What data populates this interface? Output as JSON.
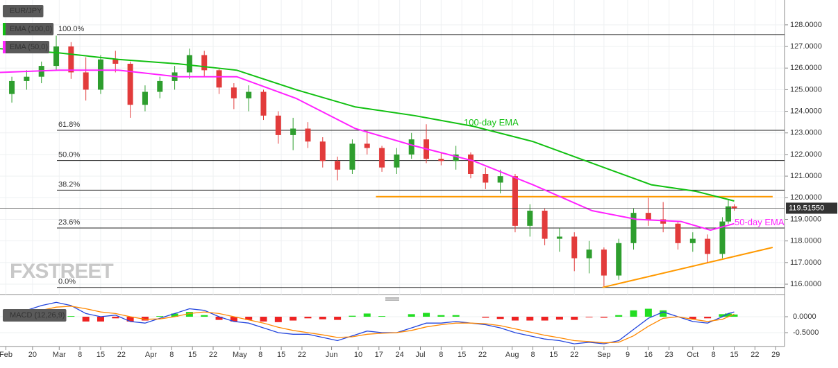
{
  "chart_data": [
    {
      "type": "candlestick",
      "title": "EUR/JPY",
      "watermark": "FXSTREET",
      "up_color": "#2e9e2e",
      "down_color": "#e23b3b",
      "xlim": [
        40,
        305
      ],
      "xticks": [
        {
          "value": 42,
          "label": "Feb"
        },
        {
          "value": 51,
          "label": "20"
        },
        {
          "value": 60,
          "label": "Mar"
        },
        {
          "value": 67,
          "label": "8"
        },
        {
          "value": 74,
          "label": "15"
        },
        {
          "value": 81,
          "label": "22"
        },
        {
          "value": 91,
          "label": "Apr"
        },
        {
          "value": 98,
          "label": "8"
        },
        {
          "value": 105,
          "label": "15"
        },
        {
          "value": 112,
          "label": "22"
        },
        {
          "value": 121,
          "label": "May"
        },
        {
          "value": 128,
          "label": "8"
        },
        {
          "value": 135,
          "label": "15"
        },
        {
          "value": 142,
          "label": "22"
        },
        {
          "value": 152,
          "label": "Jun"
        },
        {
          "value": 161,
          "label": "10"
        },
        {
          "value": 168,
          "label": "17"
        },
        {
          "value": 175,
          "label": "24"
        },
        {
          "value": 182,
          "label": "Jul"
        },
        {
          "value": 189,
          "label": "8"
        },
        {
          "value": 196,
          "label": "15"
        },
        {
          "value": 203,
          "label": "22"
        },
        {
          "value": 213,
          "label": "Aug"
        },
        {
          "value": 220,
          "label": "8"
        },
        {
          "value": 227,
          "label": "15"
        },
        {
          "value": 234,
          "label": "22"
        },
        {
          "value": 244,
          "label": "Sep"
        },
        {
          "value": 252,
          "label": "9"
        },
        {
          "value": 259,
          "label": "16"
        },
        {
          "value": 266,
          "label": "23"
        },
        {
          "value": 274,
          "label": "Oct"
        },
        {
          "value": 281,
          "label": "8"
        },
        {
          "value": 288,
          "label": "15"
        },
        {
          "value": 295,
          "label": "22"
        },
        {
          "value": 302,
          "label": "29"
        }
      ],
      "ylim": [
        115.52,
        129.15
      ],
      "yticks": [
        {
          "value": 116,
          "label": "116.0000"
        },
        {
          "value": 117,
          "label": "117.0000"
        },
        {
          "value": 118,
          "label": "118.0000"
        },
        {
          "value": 119,
          "label": "119.0000"
        },
        {
          "value": 120,
          "label": "120.0000"
        },
        {
          "value": 121,
          "label": "121.0000"
        },
        {
          "value": 122,
          "label": "122.0000"
        },
        {
          "value": 123,
          "label": "123.0000"
        },
        {
          "value": 124,
          "label": "124.0000"
        },
        {
          "value": 125,
          "label": "125.0000"
        },
        {
          "value": 126,
          "label": "126.0000"
        },
        {
          "value": 127,
          "label": "127.0000"
        },
        {
          "value": 128,
          "label": "128.0000"
        }
      ],
      "grid": true,
      "last_price": {
        "value": 119.5155,
        "label": "119.51550"
      },
      "candles": {
        "x": [
          44,
          49,
          54,
          59,
          64,
          69,
          74,
          79,
          84,
          89,
          94,
          99,
          104,
          109,
          114,
          119,
          124,
          129,
          134,
          139,
          144,
          149,
          154,
          159,
          164,
          169,
          174,
          179,
          184,
          189,
          194,
          199,
          204,
          209,
          214,
          219,
          224,
          229,
          234,
          239,
          244,
          249,
          254,
          259,
          264,
          269,
          274,
          279,
          284,
          286,
          288
        ],
        "open": [
          124.8,
          125.4,
          125.6,
          126.1,
          127.0,
          125.8,
          125.0,
          126.4,
          126.2,
          124.3,
          124.9,
          125.4,
          125.8,
          126.6,
          125.9,
          125.1,
          124.6,
          124.9,
          123.8,
          122.9,
          123.2,
          122.6,
          121.7,
          121.3,
          122.5,
          122.3,
          121.4,
          122.0,
          122.7,
          121.8,
          121.7,
          122.0,
          121.1,
          120.7,
          121.0,
          118.7,
          119.4,
          118.1,
          118.2,
          117.2,
          117.6,
          116.4,
          117.9,
          119.3,
          119.0,
          118.8,
          117.9,
          118.1,
          117.4,
          118.9,
          119.6
        ],
        "high": [
          125.6,
          125.9,
          126.3,
          127.5,
          127.2,
          126.5,
          126.6,
          126.8,
          126.3,
          125.2,
          125.6,
          126.1,
          126.9,
          126.8,
          126.0,
          125.3,
          125.2,
          125.0,
          124.0,
          123.7,
          123.5,
          122.8,
          121.9,
          122.7,
          123.1,
          122.4,
          122.3,
          123.0,
          123.4,
          122.1,
          122.4,
          122.1,
          121.4,
          121.3,
          121.1,
          119.7,
          119.5,
          118.6,
          118.4,
          118.0,
          117.7,
          118.1,
          119.5,
          120.0,
          119.8,
          118.9,
          118.4,
          118.3,
          119.1,
          119.9,
          119.7
        ],
        "low": [
          124.4,
          125.0,
          125.3,
          125.9,
          125.5,
          124.5,
          124.8,
          125.8,
          123.7,
          124.0,
          124.6,
          125.0,
          125.5,
          125.6,
          124.8,
          124.1,
          124.0,
          123.6,
          122.5,
          122.2,
          122.3,
          121.4,
          120.8,
          121.1,
          122.0,
          121.2,
          121.1,
          121.8,
          121.6,
          121.5,
          121.3,
          120.9,
          120.4,
          120.2,
          118.4,
          118.2,
          117.8,
          117.5,
          116.6,
          116.5,
          115.9,
          116.2,
          117.6,
          118.7,
          118.4,
          117.6,
          117.5,
          117.0,
          117.2,
          118.8,
          119.4
        ],
        "close": [
          125.4,
          125.6,
          126.1,
          127.0,
          125.8,
          125.0,
          126.4,
          126.2,
          124.3,
          124.9,
          125.4,
          125.8,
          126.6,
          125.9,
          125.1,
          124.6,
          124.9,
          123.8,
          122.9,
          123.2,
          122.6,
          121.7,
          121.3,
          122.5,
          122.3,
          121.4,
          122.0,
          122.7,
          121.8,
          121.7,
          122.0,
          121.1,
          120.7,
          121.0,
          118.7,
          119.4,
          118.1,
          118.2,
          117.2,
          117.6,
          116.4,
          117.9,
          119.3,
          119.0,
          118.8,
          117.9,
          118.1,
          117.4,
          118.9,
          119.6,
          119.5
        ]
      },
      "series": [
        {
          "name": "EMA (100,0)",
          "annotation": "100-day EMA",
          "color": "#11c011",
          "x": [
            40,
            60,
            80,
            100,
            120,
            140,
            160,
            180,
            200,
            220,
            240,
            260,
            275,
            288
          ],
          "values": [
            126.9,
            126.7,
            126.4,
            126.2,
            125.9,
            125.0,
            124.2,
            123.8,
            123.3,
            122.6,
            121.6,
            120.6,
            120.3,
            119.85
          ]
        },
        {
          "name": "EMA (50,0)",
          "annotation": "50-day EMA",
          "color": "#ff22ff",
          "x": [
            40,
            60,
            80,
            100,
            120,
            140,
            160,
            180,
            200,
            220,
            240,
            255,
            270,
            280,
            288
          ],
          "values": [
            125.8,
            125.9,
            125.9,
            125.6,
            125.6,
            124.6,
            123.2,
            122.4,
            121.7,
            120.6,
            119.4,
            119.0,
            118.9,
            118.5,
            118.8
          ]
        }
      ],
      "fib_levels": [
        {
          "label": "100.0%",
          "value": 127.55
        },
        {
          "label": "61.8%",
          "value": 123.12
        },
        {
          "label": "50.0%",
          "value": 121.72
        },
        {
          "label": "38.2%",
          "value": 120.35
        },
        {
          "label": "23.6%",
          "value": 118.6
        },
        {
          "label": "0.0%",
          "value": 115.85
        }
      ],
      "trend_lines": [
        {
          "color": "#ff9900",
          "x": [
            167,
            301
          ],
          "values": [
            120.05,
            120.05
          ]
        },
        {
          "color": "#ff9900",
          "x": [
            243.5,
            301
          ],
          "values": [
            115.85,
            117.7
          ]
        }
      ]
    },
    {
      "type": "macd",
      "title": "MACD (12,26,9)",
      "xlim": [
        40,
        305
      ],
      "ylim": [
        -0.935,
        0.457
      ],
      "yticks": [
        {
          "value": 0,
          "label": "0.0000"
        },
        {
          "value": -0.5,
          "label": "-0.5000"
        }
      ],
      "x": [
        44,
        49,
        54,
        59,
        64,
        69,
        74,
        79,
        84,
        89,
        94,
        99,
        104,
        109,
        114,
        119,
        124,
        129,
        134,
        139,
        144,
        149,
        154,
        159,
        164,
        169,
        174,
        179,
        184,
        189,
        194,
        199,
        204,
        209,
        214,
        219,
        224,
        229,
        234,
        239,
        244,
        249,
        254,
        259,
        264,
        269,
        274,
        279,
        284,
        286,
        288
      ],
      "histogram": {
        "up_color": "#22dd22",
        "down_color": "#ee2222",
        "values": [
          0,
          0.1,
          0.15,
          0.15,
          0.02,
          -0.15,
          -0.15,
          -0.05,
          -0.15,
          -0.12,
          0.02,
          0.1,
          0.15,
          0.05,
          -0.1,
          -0.15,
          -0.1,
          -0.15,
          -0.17,
          -0.12,
          -0.05,
          -0.08,
          -0.1,
          0.03,
          0.1,
          0.02,
          0,
          0.08,
          0.12,
          0.05,
          0.05,
          0,
          -0.03,
          -0.07,
          -0.12,
          -0.12,
          -0.12,
          -0.09,
          -0.1,
          -0.02,
          -0.03,
          0.05,
          0.2,
          0.25,
          0.2,
          0,
          -0.07,
          -0.05,
          0.08,
          0.1,
          0.07
        ]
      },
      "series": [
        {
          "color": "#2244dd",
          "values": [
            0.05,
            0.2,
            0.35,
            0.45,
            0.35,
            0.1,
            0.0,
            0.05,
            -0.15,
            -0.2,
            -0.05,
            0.1,
            0.25,
            0.2,
            0.0,
            -0.15,
            -0.2,
            -0.35,
            -0.5,
            -0.55,
            -0.55,
            -0.65,
            -0.75,
            -0.6,
            -0.45,
            -0.5,
            -0.5,
            -0.35,
            -0.2,
            -0.2,
            -0.15,
            -0.2,
            -0.25,
            -0.35,
            -0.5,
            -0.6,
            -0.7,
            -0.75,
            -0.85,
            -0.8,
            -0.85,
            -0.75,
            -0.4,
            -0.05,
            0.15,
            0.0,
            -0.15,
            -0.2,
            0.0,
            0.1,
            0.15
          ]
        },
        {
          "color": "#ff8800",
          "values": [
            0.05,
            0.1,
            0.2,
            0.3,
            0.33,
            0.25,
            0.15,
            0.1,
            0.0,
            -0.08,
            -0.07,
            0.0,
            0.1,
            0.15,
            0.1,
            0.0,
            -0.1,
            -0.2,
            -0.33,
            -0.43,
            -0.5,
            -0.57,
            -0.65,
            -0.63,
            -0.55,
            -0.52,
            -0.5,
            -0.43,
            -0.32,
            -0.25,
            -0.2,
            -0.2,
            -0.22,
            -0.28,
            -0.38,
            -0.48,
            -0.58,
            -0.66,
            -0.75,
            -0.78,
            -0.82,
            -0.8,
            -0.6,
            -0.3,
            -0.05,
            0.0,
            -0.08,
            -0.15,
            -0.08,
            0.0,
            0.08
          ]
        }
      ]
    }
  ]
}
